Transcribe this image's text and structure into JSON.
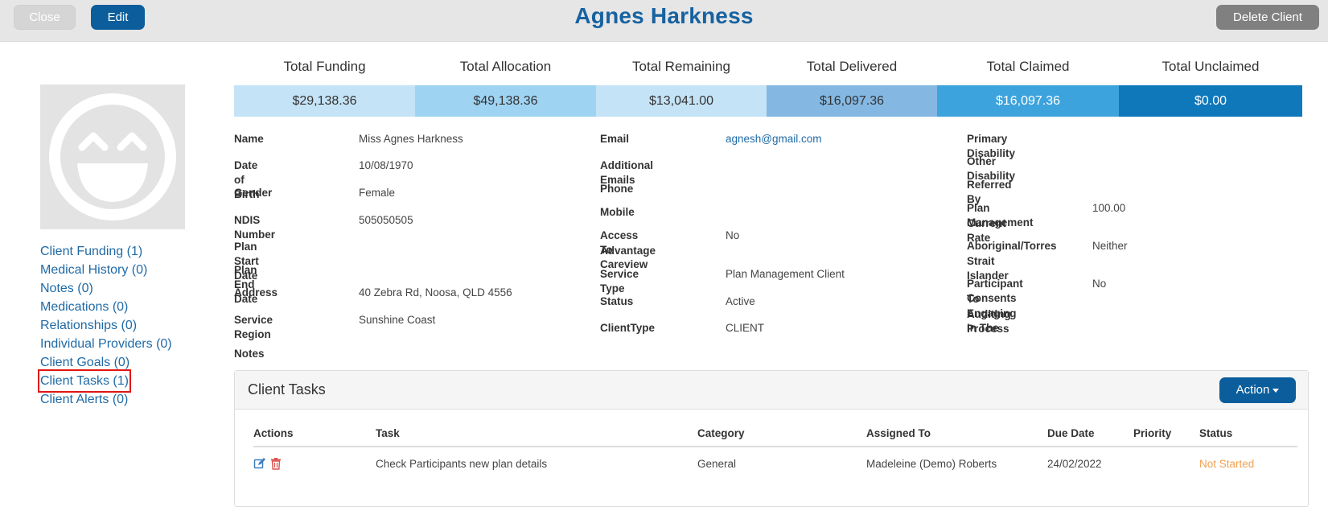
{
  "header": {
    "title": "Agnes Harkness",
    "close_label": "Close",
    "edit_label": "Edit",
    "delete_label": "Delete Client"
  },
  "sidebar": {
    "links": [
      {
        "label": "Client Funding (1)"
      },
      {
        "label": "Medical History (0)"
      },
      {
        "label": "Notes (0)"
      },
      {
        "label": "Medications (0)"
      },
      {
        "label": "Relationships (0)"
      },
      {
        "label": "Individual Providers (0)"
      },
      {
        "label": "Client Goals (0)"
      },
      {
        "label": "Client Tasks (1)"
      },
      {
        "label": "Client Alerts (0)"
      }
    ],
    "highlighted_index": 7
  },
  "totals": [
    {
      "label": "Total Funding",
      "value": "$29,138.36",
      "bg": "#c5e3f6",
      "fg": "#333333"
    },
    {
      "label": "Total Allocation",
      "value": "$49,138.36",
      "bg": "#9fd3f2",
      "fg": "#333333"
    },
    {
      "label": "Total Remaining",
      "value": "$13,041.00",
      "bg": "#c5e3f6",
      "fg": "#333333"
    },
    {
      "label": "Total Delivered",
      "value": "$16,097.36",
      "bg": "#84b8e2",
      "fg": "#333333"
    },
    {
      "label": "Total Claimed",
      "value": "$16,097.36",
      "bg": "#3da3dd",
      "fg": "#ffffff"
    },
    {
      "label": "Total Unclaimed",
      "value": "$0.00",
      "bg": "#0f78bb",
      "fg": "#ffffff"
    }
  ],
  "details_col1": {
    "name": {
      "label": "Name",
      "value": "Miss Agnes Harkness"
    },
    "dob": {
      "label": "Date of Birth",
      "value": "10/08/1970"
    },
    "gender": {
      "label": "Gender",
      "value": "Female"
    },
    "ndis": {
      "label": "NDIS Number",
      "value": "505050505"
    },
    "plan_start": {
      "label": "Plan Start Date",
      "value": ""
    },
    "plan_end": {
      "label": "Plan End Date",
      "value": ""
    },
    "address": {
      "label": "Address",
      "value": "40 Zebra Rd, Noosa, QLD 4556"
    },
    "region": {
      "label": "Service Region",
      "value": "Sunshine Coast"
    },
    "notes": {
      "label": "Notes",
      "value": ""
    }
  },
  "details_col2": {
    "email": {
      "label": "Email",
      "value": "agnesh@gmail.com"
    },
    "add_emails": {
      "label": "Additional Emails",
      "value": ""
    },
    "phone": {
      "label": "Phone",
      "value": ""
    },
    "mobile": {
      "label": "Mobile",
      "value": ""
    },
    "careview": {
      "label_line1": "Access To Careview",
      "label_line2": "Advantage",
      "value": "No"
    },
    "service_type": {
      "label": "Service Type",
      "value": "Plan Management Client"
    },
    "status": {
      "label": "Status",
      "value": "Active"
    },
    "client_type": {
      "label": "ClientType",
      "value": "CLIENT"
    }
  },
  "details_col3": {
    "primary_disability": {
      "label": "Primary Disability",
      "value": ""
    },
    "other_disability": {
      "label": "Other Disability",
      "value": ""
    },
    "referred_by": {
      "label": "Referred By",
      "value": ""
    },
    "plan_rate": {
      "label_line1": "Plan Management",
      "label_line2": "Current Rate",
      "value": "100.00"
    },
    "aboriginal": {
      "label_line1": "Aboriginal/Torres",
      "label_line2": "Strait Islander",
      "value": "Neither"
    },
    "consent": {
      "label_line1": "Participant Consents",
      "label_line2": "To Engaging In The",
      "label_line3": "Auditing Process",
      "value": "No"
    }
  },
  "tasks_panel": {
    "title": "Client Tasks",
    "action_label": "Action",
    "columns": [
      "Actions",
      "Task",
      "Category",
      "Assigned To",
      "Due Date",
      "Priority",
      "Status"
    ],
    "rows": [
      {
        "task": "Check Participants new plan details",
        "category": "General",
        "assigned_to": "Madeleine (Demo) Roberts",
        "due_date": "24/02/2022",
        "priority": "",
        "status": "Not Started"
      }
    ],
    "status_color": "#f0a050"
  },
  "icons": {
    "avatar": "smiley-face-icon",
    "edit": "edit-icon",
    "delete": "trash-icon"
  }
}
